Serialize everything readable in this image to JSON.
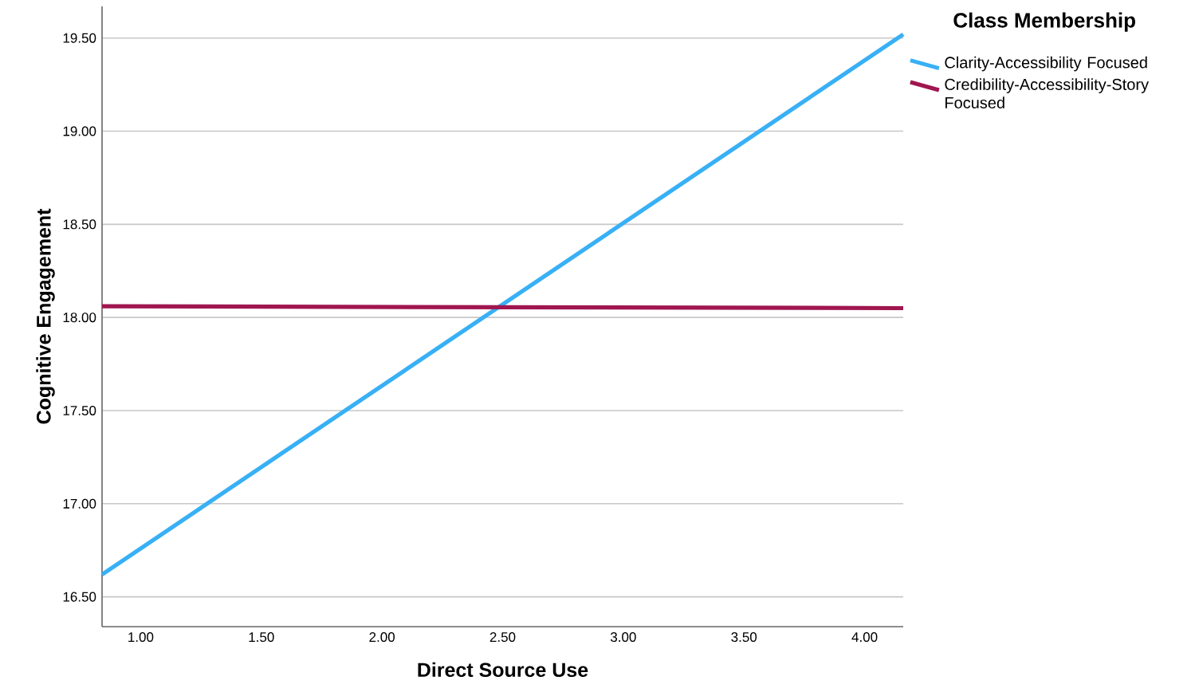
{
  "chart_data": {
    "type": "line",
    "xlabel": "Direct Source Use",
    "ylabel": "Cognitive Engagement",
    "legend_title": "Class Membership",
    "x": [
      0.84,
      4.16
    ],
    "series": [
      {
        "name": "Clarity-Accessibility Focused",
        "color": "#38b0f5",
        "values": [
          16.62,
          19.52
        ]
      },
      {
        "name": "Credibility-Accessibility-Story Focused",
        "color": "#a0164f",
        "values": [
          18.06,
          18.05
        ]
      }
    ],
    "xlim": [
      0.84,
      4.16
    ],
    "ylim": [
      16.34,
      19.67
    ],
    "xticks": [
      {
        "value": 1,
        "label": "1.00"
      },
      {
        "value": 1.5,
        "label": "1.50"
      },
      {
        "value": 2,
        "label": "2.00"
      },
      {
        "value": 2.5,
        "label": "2.50"
      },
      {
        "value": 3,
        "label": "3.00"
      },
      {
        "value": 3.5,
        "label": "3.50"
      },
      {
        "value": 4,
        "label": "4.00"
      }
    ],
    "yticks": [
      {
        "value": 16.5,
        "label": "16.50"
      },
      {
        "value": 17,
        "label": "17.00"
      },
      {
        "value": 17.5,
        "label": "17.50"
      },
      {
        "value": 18,
        "label": "18.00"
      },
      {
        "value": 18.5,
        "label": "18.50"
      },
      {
        "value": 19,
        "label": "19.00"
      },
      {
        "value": 19.5,
        "label": "19.50"
      }
    ],
    "grid": "y",
    "legend": "top right"
  }
}
